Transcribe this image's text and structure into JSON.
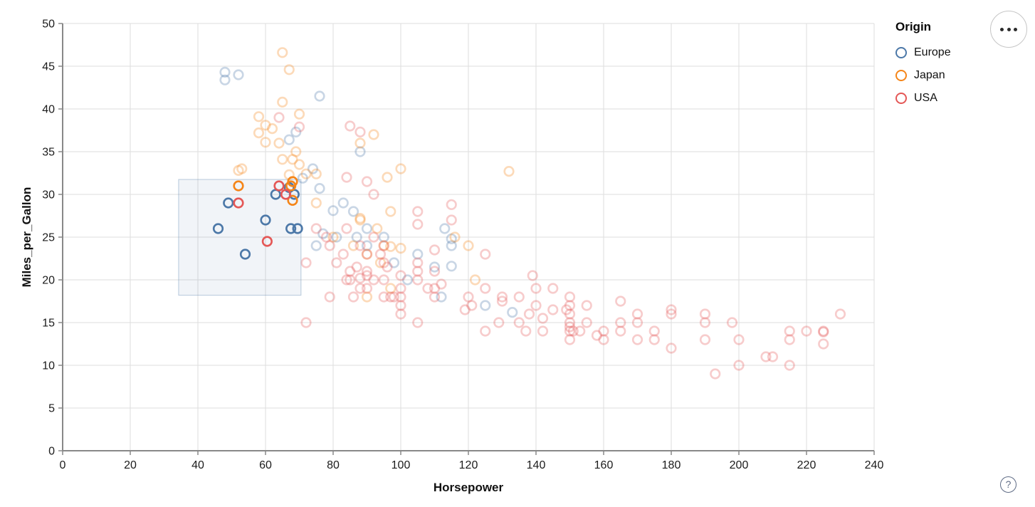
{
  "chart_data": {
    "type": "scatter",
    "title": "",
    "xlabel": "Horsepower",
    "ylabel": "Miles_per_Gallon",
    "xlim": [
      0,
      240
    ],
    "ylim": [
      0,
      50
    ],
    "x_ticks": [
      0,
      20,
      40,
      60,
      80,
      100,
      120,
      140,
      160,
      180,
      200,
      220,
      240
    ],
    "y_ticks": [
      0,
      5,
      10,
      15,
      20,
      25,
      30,
      35,
      40,
      45,
      50
    ],
    "grid": true,
    "mark": "open-circle",
    "unselected_opacity": 0.3,
    "legend": {
      "title": "Origin",
      "position": "top-right",
      "entries": [
        {
          "label": "Europe",
          "color": "#4c78a8"
        },
        {
          "label": "Japan",
          "color": "#f58518"
        },
        {
          "label": "USA",
          "color": "#e45756"
        }
      ]
    },
    "brush": {
      "x": [
        34.3,
        70.5
      ],
      "y": [
        18.2,
        31.75
      ],
      "fill": "rgba(76,120,168,0.08)",
      "stroke": "rgba(76,120,168,0.38)"
    },
    "series": [
      {
        "name": "Europe",
        "color": "#4c78a8",
        "selected_points": [
          [
            46,
            26
          ],
          [
            49,
            29
          ],
          [
            54,
            23
          ],
          [
            60,
            27
          ],
          [
            63,
            30
          ],
          [
            67,
            30.8
          ],
          [
            68.5,
            30
          ],
          [
            67.5,
            26
          ],
          [
            69.5,
            26
          ]
        ],
        "points": [
          [
            48,
            43.4
          ],
          [
            48,
            44.3
          ],
          [
            52,
            44
          ],
          [
            76,
            41.5
          ],
          [
            69,
            37.3
          ],
          [
            67,
            36.4
          ],
          [
            88,
            35
          ],
          [
            74,
            33
          ],
          [
            71,
            31.9
          ],
          [
            76,
            30.7
          ],
          [
            83,
            29
          ],
          [
            86,
            28
          ],
          [
            80,
            28.1
          ],
          [
            87,
            25
          ],
          [
            90,
            24
          ],
          [
            95,
            25
          ],
          [
            75,
            24
          ],
          [
            81,
            25
          ],
          [
            77,
            25.4
          ],
          [
            113,
            26
          ],
          [
            90,
            26
          ],
          [
            98,
            22
          ],
          [
            102,
            20
          ],
          [
            110,
            21.5
          ],
          [
            115,
            21.6
          ],
          [
            115,
            24
          ],
          [
            112,
            18
          ],
          [
            125,
            17
          ],
          [
            133,
            16.2
          ],
          [
            105,
            23
          ],
          [
            115,
            24.8
          ]
        ]
      },
      {
        "name": "Japan",
        "color": "#f58518",
        "selected_points": [
          [
            52,
            31
          ],
          [
            67.5,
            31
          ],
          [
            68,
            31.5
          ],
          [
            68,
            29.3
          ]
        ],
        "points": [
          [
            65,
            46.6
          ],
          [
            67,
            44.6
          ],
          [
            65,
            40.8
          ],
          [
            70,
            39.4
          ],
          [
            58,
            39.1
          ],
          [
            60,
            38.1
          ],
          [
            58,
            37.2
          ],
          [
            62,
            37.7
          ],
          [
            92,
            37
          ],
          [
            88,
            36
          ],
          [
            60,
            36.1
          ],
          [
            64,
            36
          ],
          [
            69,
            35
          ],
          [
            65,
            34.1
          ],
          [
            68,
            34.1
          ],
          [
            53,
            33
          ],
          [
            70,
            33.5
          ],
          [
            100,
            33
          ],
          [
            52,
            32.8
          ],
          [
            67,
            32.3
          ],
          [
            75,
            32.4
          ],
          [
            72,
            32.4
          ],
          [
            96,
            32
          ],
          [
            132,
            32.7
          ],
          [
            97,
            28
          ],
          [
            88,
            27
          ],
          [
            88,
            27.2
          ],
          [
            93,
            26
          ],
          [
            86,
            24
          ],
          [
            95,
            24
          ],
          [
            90,
            23
          ],
          [
            100,
            23.7
          ],
          [
            97,
            23.9
          ],
          [
            94,
            22
          ],
          [
            122,
            20
          ],
          [
            97,
            19
          ],
          [
            90,
            18
          ],
          [
            75,
            29
          ],
          [
            80,
            25
          ],
          [
            116,
            25
          ],
          [
            120,
            24
          ]
        ]
      },
      {
        "name": "USA",
        "color": "#e45756",
        "selected_points": [
          [
            64,
            31
          ],
          [
            66,
            30
          ],
          [
            52,
            29
          ],
          [
            60.5,
            24.5
          ]
        ],
        "points": [
          [
            64,
            39
          ],
          [
            70,
            37.9
          ],
          [
            85,
            38
          ],
          [
            88,
            37.3
          ],
          [
            84,
            32
          ],
          [
            90,
            31.5
          ],
          [
            92,
            30
          ],
          [
            115,
            28.8
          ],
          [
            105,
            28
          ],
          [
            105,
            26.5
          ],
          [
            115,
            27
          ],
          [
            125,
            23
          ],
          [
            72,
            15
          ],
          [
            72,
            22
          ],
          [
            79,
            18
          ],
          [
            85,
            21
          ],
          [
            90,
            21
          ],
          [
            97,
            18
          ],
          [
            88,
            19
          ],
          [
            86,
            18
          ],
          [
            90,
            23
          ],
          [
            95,
            22
          ],
          [
            95,
            24
          ],
          [
            88,
            24
          ],
          [
            100,
            19
          ],
          [
            105,
            15
          ],
          [
            100,
            16
          ],
          [
            100,
            17
          ],
          [
            100,
            18
          ],
          [
            110,
            18
          ],
          [
            90,
            20.5
          ],
          [
            88,
            20.2
          ],
          [
            85,
            20
          ],
          [
            84,
            20
          ],
          [
            92,
            20
          ],
          [
            98,
            18
          ],
          [
            95,
            18
          ],
          [
            105,
            20
          ],
          [
            108,
            19
          ],
          [
            90,
            19
          ],
          [
            95,
            20
          ],
          [
            87,
            21.5
          ],
          [
            81,
            22
          ],
          [
            83,
            23
          ],
          [
            92,
            25
          ],
          [
            94,
            23
          ],
          [
            84,
            26
          ],
          [
            79,
            24
          ],
          [
            78,
            25
          ],
          [
            75,
            26
          ],
          [
            96,
            21.5
          ],
          [
            105,
            22
          ],
          [
            100,
            20.5
          ],
          [
            110,
            23.5
          ],
          [
            110,
            21
          ],
          [
            110,
            19
          ],
          [
            105,
            21
          ],
          [
            112,
            19.5
          ],
          [
            119,
            16.5
          ],
          [
            120,
            18
          ],
          [
            121,
            17
          ],
          [
            125,
            19
          ],
          [
            125,
            14
          ],
          [
            130,
            18
          ],
          [
            130,
            17.5
          ],
          [
            135,
            18
          ],
          [
            135,
            15
          ],
          [
            138,
            16
          ],
          [
            139,
            20.5
          ],
          [
            140,
            19
          ],
          [
            140,
            17
          ],
          [
            142,
            14
          ],
          [
            145,
            19
          ],
          [
            137,
            14
          ],
          [
            129,
            15
          ],
          [
            150,
            18
          ],
          [
            150,
            17
          ],
          [
            150,
            16
          ],
          [
            150,
            15
          ],
          [
            150,
            14.5
          ],
          [
            150,
            14
          ],
          [
            151,
            14
          ],
          [
            150,
            13
          ],
          [
            145,
            16.5
          ],
          [
            149,
            16.5
          ],
          [
            153,
            14
          ],
          [
            155,
            17
          ],
          [
            155,
            15
          ],
          [
            158,
            13.5
          ],
          [
            160,
            14
          ],
          [
            160,
            13
          ],
          [
            165,
            15
          ],
          [
            165,
            14
          ],
          [
            165,
            17.5
          ],
          [
            170,
            15
          ],
          [
            170,
            16
          ],
          [
            170,
            13
          ],
          [
            175,
            14
          ],
          [
            175,
            13
          ],
          [
            142,
            15.5
          ],
          [
            180,
            16.5
          ],
          [
            180,
            16
          ],
          [
            180,
            12
          ],
          [
            190,
            16
          ],
          [
            190,
            15
          ],
          [
            190,
            13
          ],
          [
            193,
            9
          ],
          [
            198,
            15
          ],
          [
            200,
            13
          ],
          [
            200,
            10
          ],
          [
            208,
            11
          ],
          [
            210,
            11
          ],
          [
            215,
            10
          ],
          [
            215,
            14
          ],
          [
            215,
            13
          ],
          [
            220,
            14
          ],
          [
            225,
            14
          ],
          [
            225,
            13.9
          ],
          [
            225,
            12.5
          ],
          [
            230,
            16
          ]
        ]
      }
    ]
  },
  "controls": {
    "help_label": "?"
  }
}
